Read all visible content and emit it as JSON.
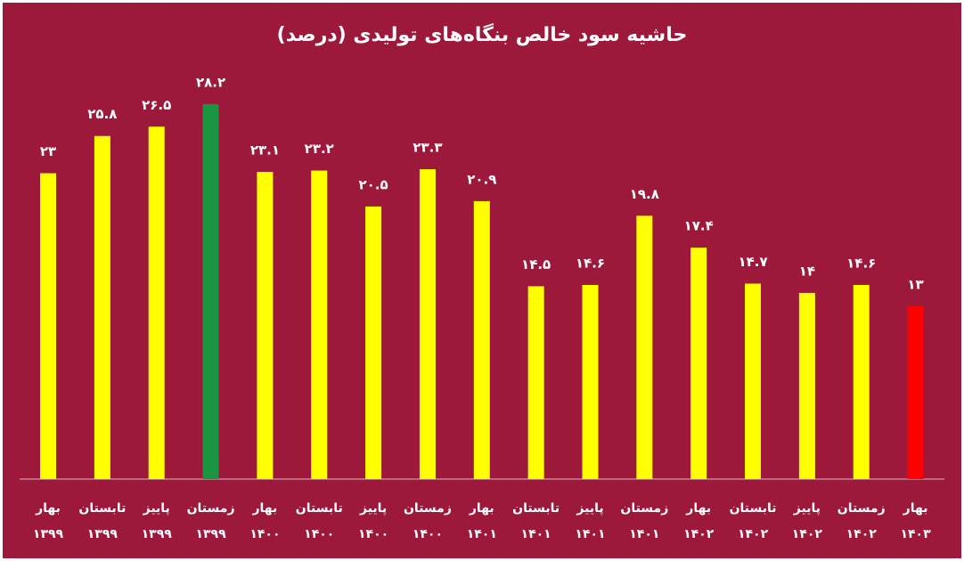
{
  "chart_data": {
    "type": "bar",
    "title": "حاشیه سود خالص بنگاه‌های تولیدی (درصد)",
    "categories": [
      [
        "بهار",
        "۱۳۹۹"
      ],
      [
        "تابستان",
        "۱۳۹۹"
      ],
      [
        "پاییز",
        "۱۳۹۹"
      ],
      [
        "زمستان",
        "۱۳۹۹"
      ],
      [
        "بهار",
        "۱۴۰۰"
      ],
      [
        "تابستان",
        "۱۴۰۰"
      ],
      [
        "پاییز",
        "۱۴۰۰"
      ],
      [
        "زمستان",
        "۱۴۰۰"
      ],
      [
        "بهار",
        "۱۴۰۱"
      ],
      [
        "تابستان",
        "۱۴۰۱"
      ],
      [
        "پاییز",
        "۱۴۰۱"
      ],
      [
        "زمستان",
        "۱۴۰۱"
      ],
      [
        "بهار",
        "۱۴۰۲"
      ],
      [
        "تابستان",
        "۱۴۰۲"
      ],
      [
        "پاییز",
        "۱۴۰۲"
      ],
      [
        "زمستان",
        "۱۴۰۲"
      ],
      [
        "بهار",
        "۱۴۰۳"
      ]
    ],
    "values": [
      23,
      25.8,
      26.5,
      28.2,
      23.1,
      23.2,
      20.5,
      23.3,
      20.9,
      14.5,
      14.6,
      19.8,
      17.4,
      14.7,
      14,
      14.6,
      13
    ],
    "value_labels": [
      "۲۳",
      "۲۵.۸",
      "۲۶.۵",
      "۲۸.۲",
      "۲۳.۱",
      "۲۳.۲",
      "۲۰.۵",
      "۲۳.۳",
      "۲۰.۹",
      "۱۴.۵",
      "۱۴.۶",
      "۱۹.۸",
      "۱۷.۴",
      "۱۴.۷",
      "۱۴",
      "۱۴.۶",
      "۱۳"
    ],
    "colors": [
      "#ffff00",
      "#ffff00",
      "#ffff00",
      "#1a9641",
      "#ffff00",
      "#ffff00",
      "#ffff00",
      "#ffff00",
      "#ffff00",
      "#ffff00",
      "#ffff00",
      "#ffff00",
      "#ffff00",
      "#ffff00",
      "#ffff00",
      "#ffff00",
      "#ff0000"
    ],
    "ylim": [
      0,
      30
    ]
  }
}
